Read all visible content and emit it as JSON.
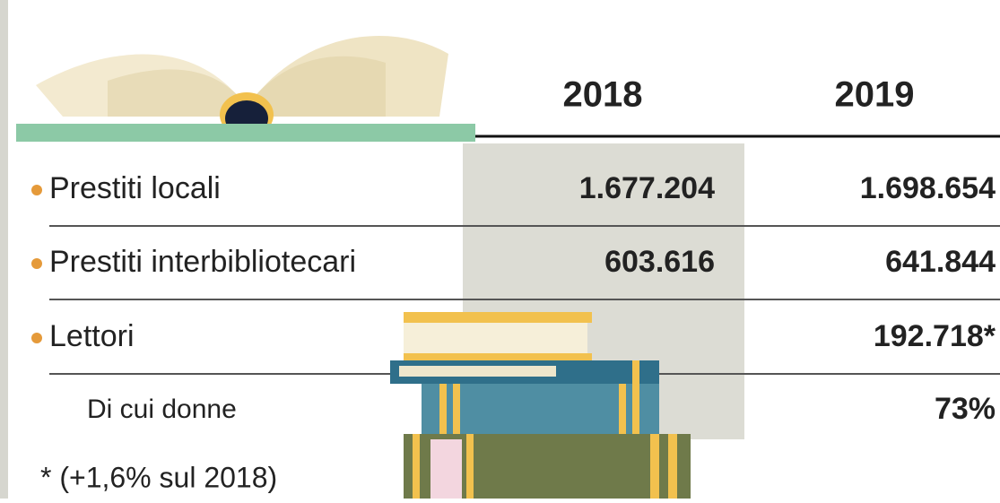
{
  "table": {
    "columns": [
      "2018",
      "2019"
    ],
    "rows": [
      {
        "label": "Prestiti locali",
        "v2018": "1.677.204",
        "v2019": "1.698.654"
      },
      {
        "label": "Prestiti interbibliotecari",
        "v2018": "603.616",
        "v2019": "641.844"
      },
      {
        "label": "Lettori",
        "v2019": "192.718*"
      },
      {
        "label": "Di cui donne",
        "v2019": "73%"
      }
    ],
    "footnote": "* (+1,6% sul 2018)"
  }
}
